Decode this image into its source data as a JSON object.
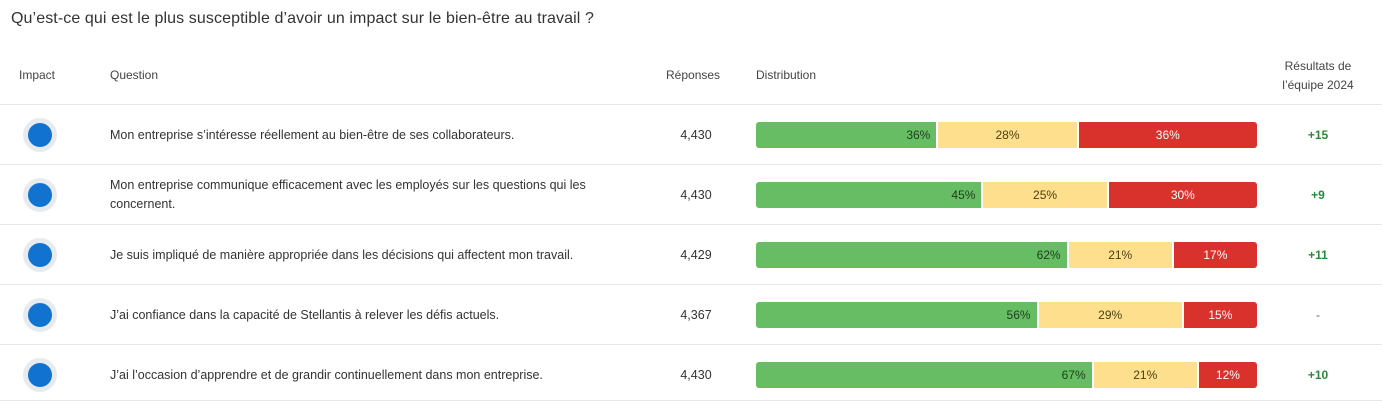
{
  "title": "Qu’est-ce qui est le plus susceptible d’avoir un impact sur le bien-être au travail ?",
  "headers": {
    "impact": "Impact",
    "question": "Question",
    "responses": "Réponses",
    "distribution": "Distribution",
    "results_line1": "Résultats de",
    "results_line2": "l’équipe 2024"
  },
  "colors": {
    "favorable": "#67bd64",
    "neutral": "#fddf8e",
    "unfavorable": "#d9312b",
    "impact_dot": "#1173cf",
    "positive_delta": "#2a8a3a"
  },
  "rows": [
    {
      "impact_icon": "impact-dot-icon",
      "question": "Mon entreprise s’intéresse réellement au bien-être de ses collaborateurs.",
      "responses": "4,430",
      "favorable": 36,
      "neutral": 28,
      "unfavorable": 36,
      "favorable_label": "36%",
      "neutral_label": "28%",
      "unfavorable_label": "36%",
      "result": "+15"
    },
    {
      "impact_icon": "impact-dot-icon",
      "question": "Mon entreprise communique efficacement avec les employés sur les questions qui les concernent.",
      "responses": "4,430",
      "favorable": 45,
      "neutral": 25,
      "unfavorable": 30,
      "favorable_label": "45%",
      "neutral_label": "25%",
      "unfavorable_label": "30%",
      "result": "+9"
    },
    {
      "impact_icon": "impact-dot-icon",
      "question": "Je suis impliqué de manière appropriée dans les décisions qui affectent mon travail.",
      "responses": "4,429",
      "favorable": 62,
      "neutral": 21,
      "unfavorable": 17,
      "favorable_label": "62%",
      "neutral_label": "21%",
      "unfavorable_label": "17%",
      "result": "+11"
    },
    {
      "impact_icon": "impact-dot-icon",
      "question": "J’ai confiance dans la capacité de Stellantis à relever les défis actuels.",
      "responses": "4,367",
      "favorable": 56,
      "neutral": 29,
      "unfavorable": 15,
      "favorable_label": "56%",
      "neutral_label": "29%",
      "unfavorable_label": "15%",
      "result": "-"
    },
    {
      "impact_icon": "impact-dot-icon",
      "question": "J’ai l’occasion d’apprendre et de grandir continuellement dans mon entreprise.",
      "responses": "4,430",
      "favorable": 67,
      "neutral": 21,
      "unfavorable": 12,
      "favorable_label": "67%",
      "neutral_label": "21%",
      "unfavorable_label": "12%",
      "result": "+10"
    }
  ]
}
